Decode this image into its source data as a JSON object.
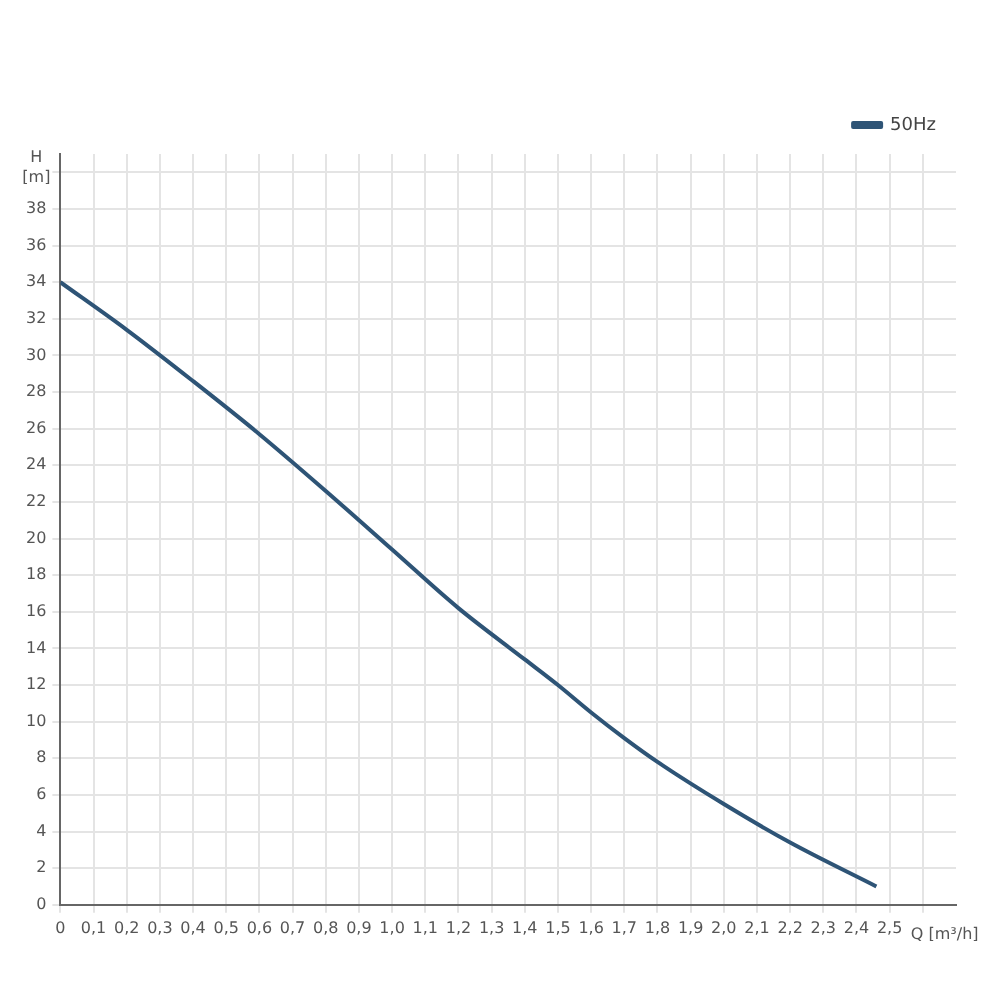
{
  "chart_data": {
    "type": "line",
    "xlabel": "Q [m³/h]",
    "ylabel": "H [m]",
    "x": [
      0,
      0.2,
      0.4,
      0.6,
      0.8,
      1.0,
      1.2,
      1.4,
      1.5,
      1.6,
      1.7,
      1.8,
      2.0,
      2.2,
      2.46
    ],
    "series": [
      {
        "name": "50Hz",
        "color": "#2e5476",
        "values": [
          34,
          31.4,
          28.6,
          25.7,
          22.6,
          19.4,
          16.2,
          13.4,
          12.0,
          10.5,
          9.1,
          7.8,
          5.5,
          3.4,
          1.0
        ]
      }
    ],
    "xlim": [
      0,
      2.7
    ],
    "xticks": [
      0,
      {
        "value": 0.1,
        "label": "0,1"
      },
      {
        "value": 0.2,
        "label": "0,2"
      },
      {
        "value": 0.3,
        "label": "0,3"
      },
      {
        "value": 0.4,
        "label": "0,4"
      },
      {
        "value": 0.5,
        "label": "0,5"
      },
      {
        "value": 0.6,
        "label": "0,6"
      },
      {
        "value": 0.7,
        "label": "0,7"
      },
      {
        "value": 0.8,
        "label": "0,8"
      },
      {
        "value": 0.9,
        "label": "0,9"
      },
      {
        "value": 1.0,
        "label": "1,0"
      },
      {
        "value": 1.1,
        "label": "1,1"
      },
      {
        "value": 1.2,
        "label": "1,2"
      },
      {
        "value": 1.3,
        "label": "1,3"
      },
      {
        "value": 1.4,
        "label": "1,4"
      },
      {
        "value": 1.5,
        "label": "1,5"
      },
      {
        "value": 1.6,
        "label": "1,6"
      },
      {
        "value": 1.7,
        "label": "1,7"
      },
      {
        "value": 1.8,
        "label": "1,8"
      },
      {
        "value": 1.9,
        "label": "1,9"
      },
      {
        "value": 2.0,
        "label": "2,0"
      },
      {
        "value": 2.1,
        "label": "2,1"
      },
      {
        "value": 2.2,
        "label": "2,2"
      },
      {
        "value": 2.3,
        "label": "2,3"
      },
      {
        "value": 2.4,
        "label": "2,4"
      },
      {
        "value": 2.5,
        "label": "2,5"
      },
      {
        "value": 2.6,
        "label": null
      }
    ],
    "ylim": [
      0,
      41
    ],
    "yticks": [
      0,
      2,
      4,
      6,
      8,
      10,
      12,
      14,
      16,
      18,
      20,
      22,
      24,
      26,
      28,
      30,
      32,
      34,
      36,
      38,
      {
        "value": 40,
        "label": null
      }
    ],
    "grid": true,
    "legend": "top right",
    "marker": "none",
    "line_style": "solid"
  }
}
